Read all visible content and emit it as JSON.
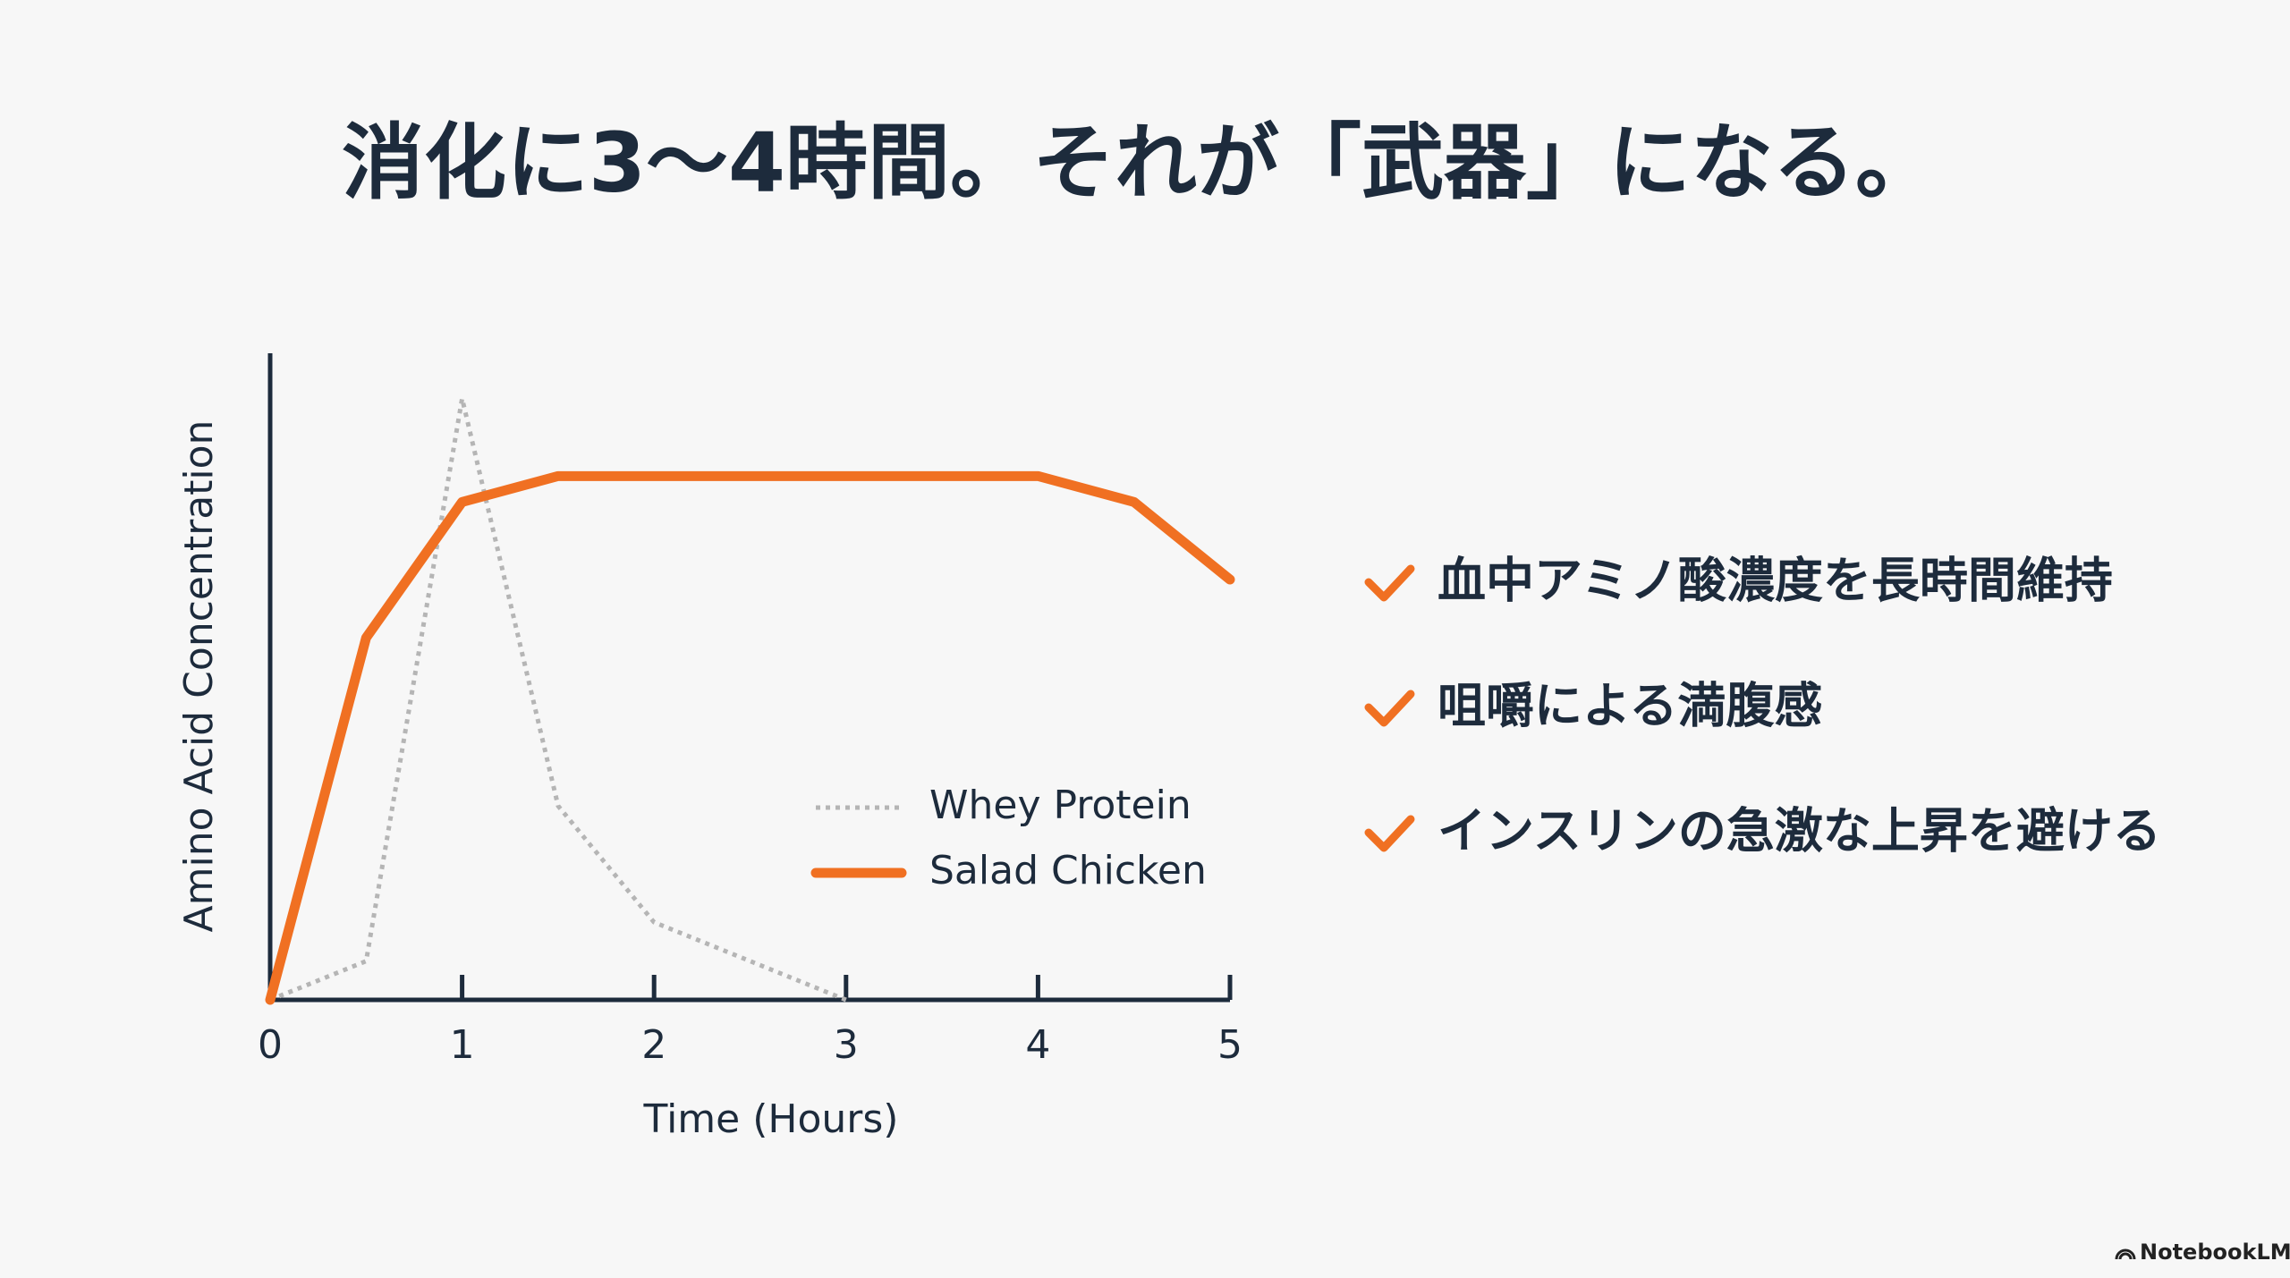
{
  "chart_data": {
    "type": "line",
    "title": "消化に3〜4時間。それが「武器」になる。",
    "x_label": "Time (Hours)",
    "y_label": "Amino Acid Concentration",
    "xlim": [
      0,
      5
    ],
    "xticks": [
      0,
      1,
      2,
      3,
      4,
      5
    ],
    "ylim": [
      0,
      100
    ],
    "legend": "lower right",
    "series": [
      {
        "name": "Whey Protein",
        "color": "#b5b5b5",
        "style": "dotted",
        "x": [
          0,
          0.5,
          1,
          1.5,
          2,
          3
        ],
        "values": [
          0,
          6,
          93,
          30,
          12,
          0
        ]
      },
      {
        "name": "Salad Chicken",
        "color": "#f07022",
        "style": "solid",
        "x": [
          0,
          0.5,
          1,
          1.5,
          4,
          4.5,
          5
        ],
        "values": [
          0,
          56,
          77,
          81,
          81,
          77,
          65
        ]
      }
    ]
  },
  "checklist": [
    "血中アミノ酸濃度を長時間維持",
    "咀嚼による満腹感",
    "インスリンの急激な上昇を避ける"
  ],
  "watermark": "NotebookLM"
}
